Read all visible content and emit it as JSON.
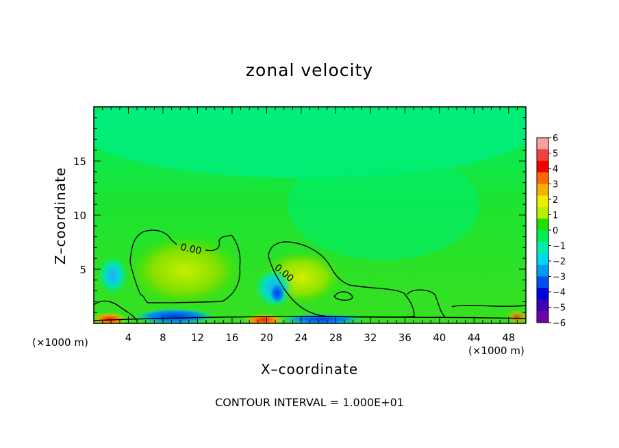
{
  "chart_data": {
    "type": "heatmap",
    "title": "zonal velocity",
    "xlabel": "X–coordinate",
    "ylabel": "Z–coordinate",
    "x_unit_left": "(×1000 m)",
    "x_unit_right": "(×1000 m)",
    "xlim": [
      0,
      50
    ],
    "ylim": [
      0,
      20
    ],
    "x_ticks": [
      4,
      8,
      12,
      16,
      20,
      24,
      28,
      32,
      36,
      40,
      44,
      48
    ],
    "y_ticks": [
      5,
      10,
      15
    ],
    "contour_labels": [
      {
        "text": "0.00",
        "x": 11.5,
        "z": 6.6
      },
      {
        "text": "0.00",
        "x": 21.7,
        "z": 4.5
      }
    ],
    "contour_interval": "CONTOUR INTERVAL = 1.000E+01",
    "colorbar": {
      "labels": [
        "6",
        "5",
        "4",
        "3",
        "2",
        "1",
        "0",
        "−1",
        "−2",
        "−3",
        "−4",
        "−5",
        "−6"
      ],
      "colors": [
        "#f7a0a0",
        "#f04040",
        "#f00000",
        "#ff6a00",
        "#f7b000",
        "#eeee00",
        "#b8ee00",
        "#22dd00",
        "#00ee55",
        "#00eeaa",
        "#00d8ee",
        "#009cf0",
        "#0050f0",
        "#0000d8",
        "#3c00b8",
        "#7000a8"
      ]
    }
  }
}
